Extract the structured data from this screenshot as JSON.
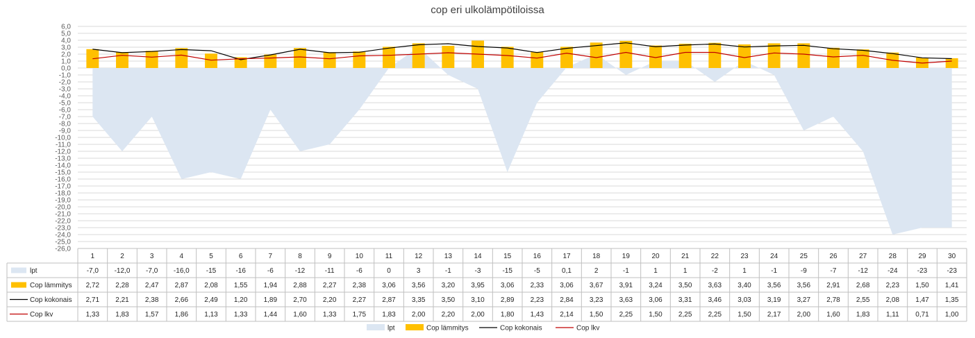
{
  "chart_data": {
    "type": "bar",
    "title": "cop eri ulkolämpötiloissa",
    "categories": [
      "1",
      "2",
      "3",
      "4",
      "5",
      "6",
      "7",
      "8",
      "9",
      "10",
      "11",
      "12",
      "13",
      "14",
      "15",
      "16",
      "17",
      "18",
      "19",
      "20",
      "21",
      "22",
      "23",
      "24",
      "25",
      "26",
      "27",
      "28",
      "29",
      "30"
    ],
    "ylim": [
      -26,
      6
    ],
    "yticks": [
      "6,0",
      "5,0",
      "4,0",
      "3,0",
      "2,0",
      "1,0",
      "0,0",
      "-1,0",
      "-2,0",
      "-3,0",
      "-4,0",
      "-5,0",
      "-6,0",
      "-7,0",
      "-8,0",
      "-9,0",
      "-10,0",
      "-11,0",
      "-12,0",
      "-13,0",
      "-14,0",
      "-15,0",
      "-16,0",
      "-17,0",
      "-18,0",
      "-19,0",
      "-20,0",
      "-21,0",
      "-22,0",
      "-23,0",
      "-24,0",
      "-25,0",
      "-26,0"
    ],
    "grid": true,
    "legend_position": "bottom",
    "data_table": true,
    "series": [
      {
        "name": "lpt",
        "type": "area",
        "color": "#dce6f2",
        "values": [
          -7,
          -12,
          -7,
          -16,
          -15,
          -16,
          -6,
          -12,
          -11,
          -6,
          0,
          3,
          -1,
          -3,
          -15,
          -5,
          0.1,
          2,
          -1,
          1,
          1,
          -2,
          1,
          -1,
          -9,
          -7,
          -12,
          -24,
          -23,
          -23
        ],
        "labels": [
          "-7,0",
          "-12,0",
          "-7,0",
          "-16,0",
          "-15",
          "-16",
          "-6",
          "-12",
          "-11",
          "-6",
          "0",
          "3",
          "-1",
          "-3",
          "-15",
          "-5",
          "0,1",
          "2",
          "-1",
          "1",
          "1",
          "-2",
          "1",
          "-1",
          "-9",
          "-7",
          "-12",
          "-24",
          "-23",
          "-23"
        ]
      },
      {
        "name": "Cop lämmitys",
        "type": "bar",
        "color": "#ffc000",
        "values": [
          2.72,
          2.28,
          2.47,
          2.87,
          2.08,
          1.55,
          1.94,
          2.88,
          2.27,
          2.38,
          3.06,
          3.56,
          3.2,
          3.95,
          3.06,
          2.33,
          3.06,
          3.67,
          3.91,
          3.24,
          3.5,
          3.63,
          3.4,
          3.56,
          3.56,
          2.91,
          2.68,
          2.23,
          1.5,
          1.41
        ],
        "labels": [
          "2,72",
          "2,28",
          "2,47",
          "2,87",
          "2,08",
          "1,55",
          "1,94",
          "2,88",
          "2,27",
          "2,38",
          "3,06",
          "3,56",
          "3,20",
          "3,95",
          "3,06",
          "2,33",
          "3,06",
          "3,67",
          "3,91",
          "3,24",
          "3,50",
          "3,63",
          "3,40",
          "3,56",
          "3,56",
          "2,91",
          "2,68",
          "2,23",
          "1,50",
          "1,41"
        ]
      },
      {
        "name": "Cop kokonais",
        "type": "line",
        "color": "#000000",
        "values": [
          2.71,
          2.21,
          2.38,
          2.66,
          2.49,
          1.2,
          1.89,
          2.7,
          2.2,
          2.27,
          2.87,
          3.35,
          3.5,
          3.1,
          2.89,
          2.23,
          2.84,
          3.23,
          3.63,
          3.06,
          3.31,
          3.46,
          3.03,
          3.19,
          3.27,
          2.78,
          2.55,
          2.08,
          1.47,
          1.35
        ],
        "labels": [
          "2,71",
          "2,21",
          "2,38",
          "2,66",
          "2,49",
          "1,20",
          "1,89",
          "2,70",
          "2,20",
          "2,27",
          "2,87",
          "3,35",
          "3,50",
          "3,10",
          "2,89",
          "2,23",
          "2,84",
          "3,23",
          "3,63",
          "3,06",
          "3,31",
          "3,46",
          "3,03",
          "3,19",
          "3,27",
          "2,78",
          "2,55",
          "2,08",
          "1,47",
          "1,35"
        ]
      },
      {
        "name": "Cop lkv",
        "type": "line",
        "color": "#c00000",
        "values": [
          1.33,
          1.83,
          1.57,
          1.86,
          1.13,
          1.33,
          1.44,
          1.6,
          1.33,
          1.75,
          1.83,
          2.0,
          2.2,
          2.0,
          1.8,
          1.43,
          2.14,
          1.5,
          2.25,
          1.5,
          2.25,
          2.25,
          1.5,
          2.17,
          2.0,
          1.6,
          1.83,
          1.11,
          0.71,
          1.0
        ],
        "labels": [
          "1,33",
          "1,83",
          "1,57",
          "1,86",
          "1,13",
          "1,33",
          "1,44",
          "1,60",
          "1,33",
          "1,75",
          "1,83",
          "2,00",
          "2,20",
          "2,00",
          "1,80",
          "1,43",
          "2,14",
          "1,50",
          "2,25",
          "1,50",
          "2,25",
          "2,25",
          "1,50",
          "2,17",
          "2,00",
          "1,60",
          "1,83",
          "1,11",
          "0,71",
          "1,00"
        ]
      }
    ]
  }
}
